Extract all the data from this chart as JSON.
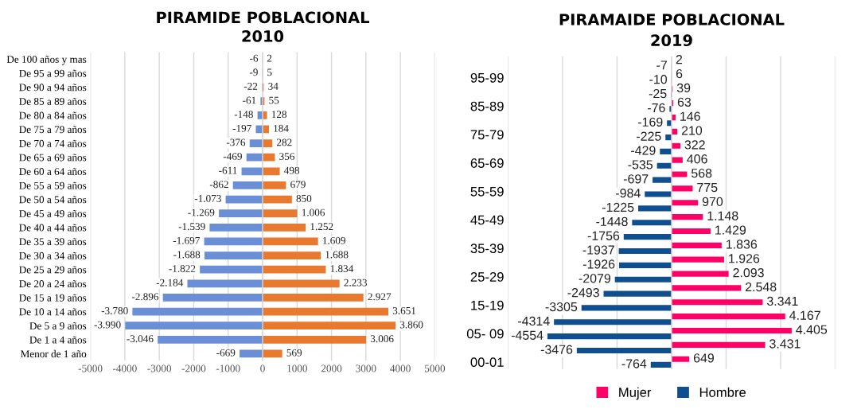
{
  "chart_data": [
    {
      "type": "bar",
      "orientation": "horizontal",
      "stacked": true,
      "title": "PIRAMIDE POBLACIONAL",
      "subtitle": "2010",
      "categories": [
        "De 100 años y mas",
        "De 95 a 99 años",
        "De 90 a 94 años",
        "De 85 a 89 años",
        "De 80 a 84 años",
        "De 75 a 79 años",
        "De 70 a 74 años",
        "De 65 a 69 años",
        "De 60 a 64 años",
        "De 55 a 59 años",
        "De 50 a 54 años",
        "De 45 a 49 años",
        "De 40 a 44 años",
        "De 35 a 39 años",
        "De 30 a 34 años",
        "De 25 a 29 años",
        "De 20 a 24 años",
        "De 15 a 19 años",
        "De 10 a 14 años",
        "De 5 a 9 años",
        "De 1 a 4 años",
        "Menor de 1 año"
      ],
      "series": [
        {
          "color": "#6a8fd6",
          "values": [
            -6,
            -9,
            -22,
            -61,
            -148,
            -197,
            -376,
            -469,
            -611,
            -862,
            -1073,
            -1269,
            -1539,
            -1697,
            -1688,
            -1822,
            -2184,
            -2896,
            -3780,
            -3990,
            -3046,
            -669
          ],
          "value_labels": [
            "-6",
            "-9",
            "-22",
            "-61",
            "-148",
            "-197",
            "-376",
            "-469",
            "-611",
            "-862",
            "-1.073",
            "-1.269",
            "-1.539",
            "-1.697",
            "-1.688",
            "-1.822",
            "-2.184",
            "-2.896",
            "-3.780",
            "-3.990",
            "-3.046",
            "-669"
          ]
        },
        {
          "color": "#e8792f",
          "values": [
            2,
            5,
            34,
            55,
            128,
            184,
            282,
            356,
            498,
            679,
            850,
            1006,
            1252,
            1609,
            1688,
            1834,
            2233,
            2927,
            3651,
            3860,
            3006,
            569
          ],
          "value_labels": [
            "2",
            "5",
            "34",
            "55",
            "128",
            "184",
            "282",
            "356",
            "498",
            "679",
            "850",
            "1.006",
            "1.252",
            "1.609",
            "1.688",
            "1.834",
            "2.233",
            "2.927",
            "3.651",
            "3.860",
            "3.006",
            "569"
          ]
        }
      ],
      "xlim": [
        -5000,
        5000
      ],
      "xticks": [
        -5000,
        -4000,
        -3000,
        -2000,
        -1000,
        0,
        1000,
        2000,
        3000,
        4000,
        5000
      ],
      "grid": "x",
      "legend": false
    },
    {
      "type": "bar",
      "orientation": "horizontal",
      "title": "PIRAMAIDE POBLACIONAL",
      "subtitle": "2019",
      "categories": [
        null,
        "95-99",
        null,
        "85-89",
        null,
        "75-79",
        null,
        "65-69",
        null,
        "55-59",
        null,
        "45-49",
        null,
        "35-39",
        null,
        "25-29",
        null,
        "15-19",
        null,
        "05- 09",
        null,
        "00-01"
      ],
      "series": [
        {
          "name": "Mujer",
          "color": "#ff0066",
          "values": [
            2,
            6,
            39,
            63,
            146,
            210,
            322,
            406,
            568,
            775,
            970,
            1148,
            1429,
            1836,
            1926,
            2093,
            2548,
            3341,
            4167,
            4405,
            3431,
            649
          ],
          "value_labels": [
            "2",
            "6",
            "39",
            "63",
            "146",
            "210",
            "322",
            "406",
            "568",
            "775",
            "970",
            "1.148",
            "1.429",
            "1.836",
            "1.926",
            "2.093",
            "2.548",
            "3.341",
            "4.167",
            "4.405",
            "3.431",
            "649"
          ]
        },
        {
          "name": "Hombre",
          "color": "#0f4f8f",
          "values": [
            -7,
            -10,
            -25,
            -76,
            -169,
            -225,
            -429,
            -535,
            -697,
            -984,
            -1225,
            -1448,
            -1756,
            -1937,
            -1926,
            -2079,
            -2493,
            -3305,
            -4314,
            -4554,
            -3476,
            -764
          ],
          "value_labels": [
            "-7",
            "-10",
            "-25",
            "-76",
            "-169",
            "-225",
            "-429",
            "-535",
            "-697",
            "-984",
            "-1225",
            "-1448",
            "-1756",
            "-1937",
            "-1926",
            "-2079",
            "-2493",
            "-3305",
            "-4314",
            "-4554",
            "-3476",
            "-764"
          ]
        }
      ],
      "xlim": [
        -6000,
        6000
      ],
      "xticks": [
        {
          "value": -6000,
          "label": null
        },
        {
          "value": -4000,
          "label": null
        },
        {
          "value": -2000,
          "label": null
        },
        {
          "value": 0,
          "label": null
        },
        {
          "value": 2000,
          "label": null
        },
        {
          "value": 4000,
          "label": null
        },
        {
          "value": 6000,
          "label": null
        }
      ],
      "tick_labels": "y",
      "grid": "x",
      "legend": "bottom"
    }
  ]
}
